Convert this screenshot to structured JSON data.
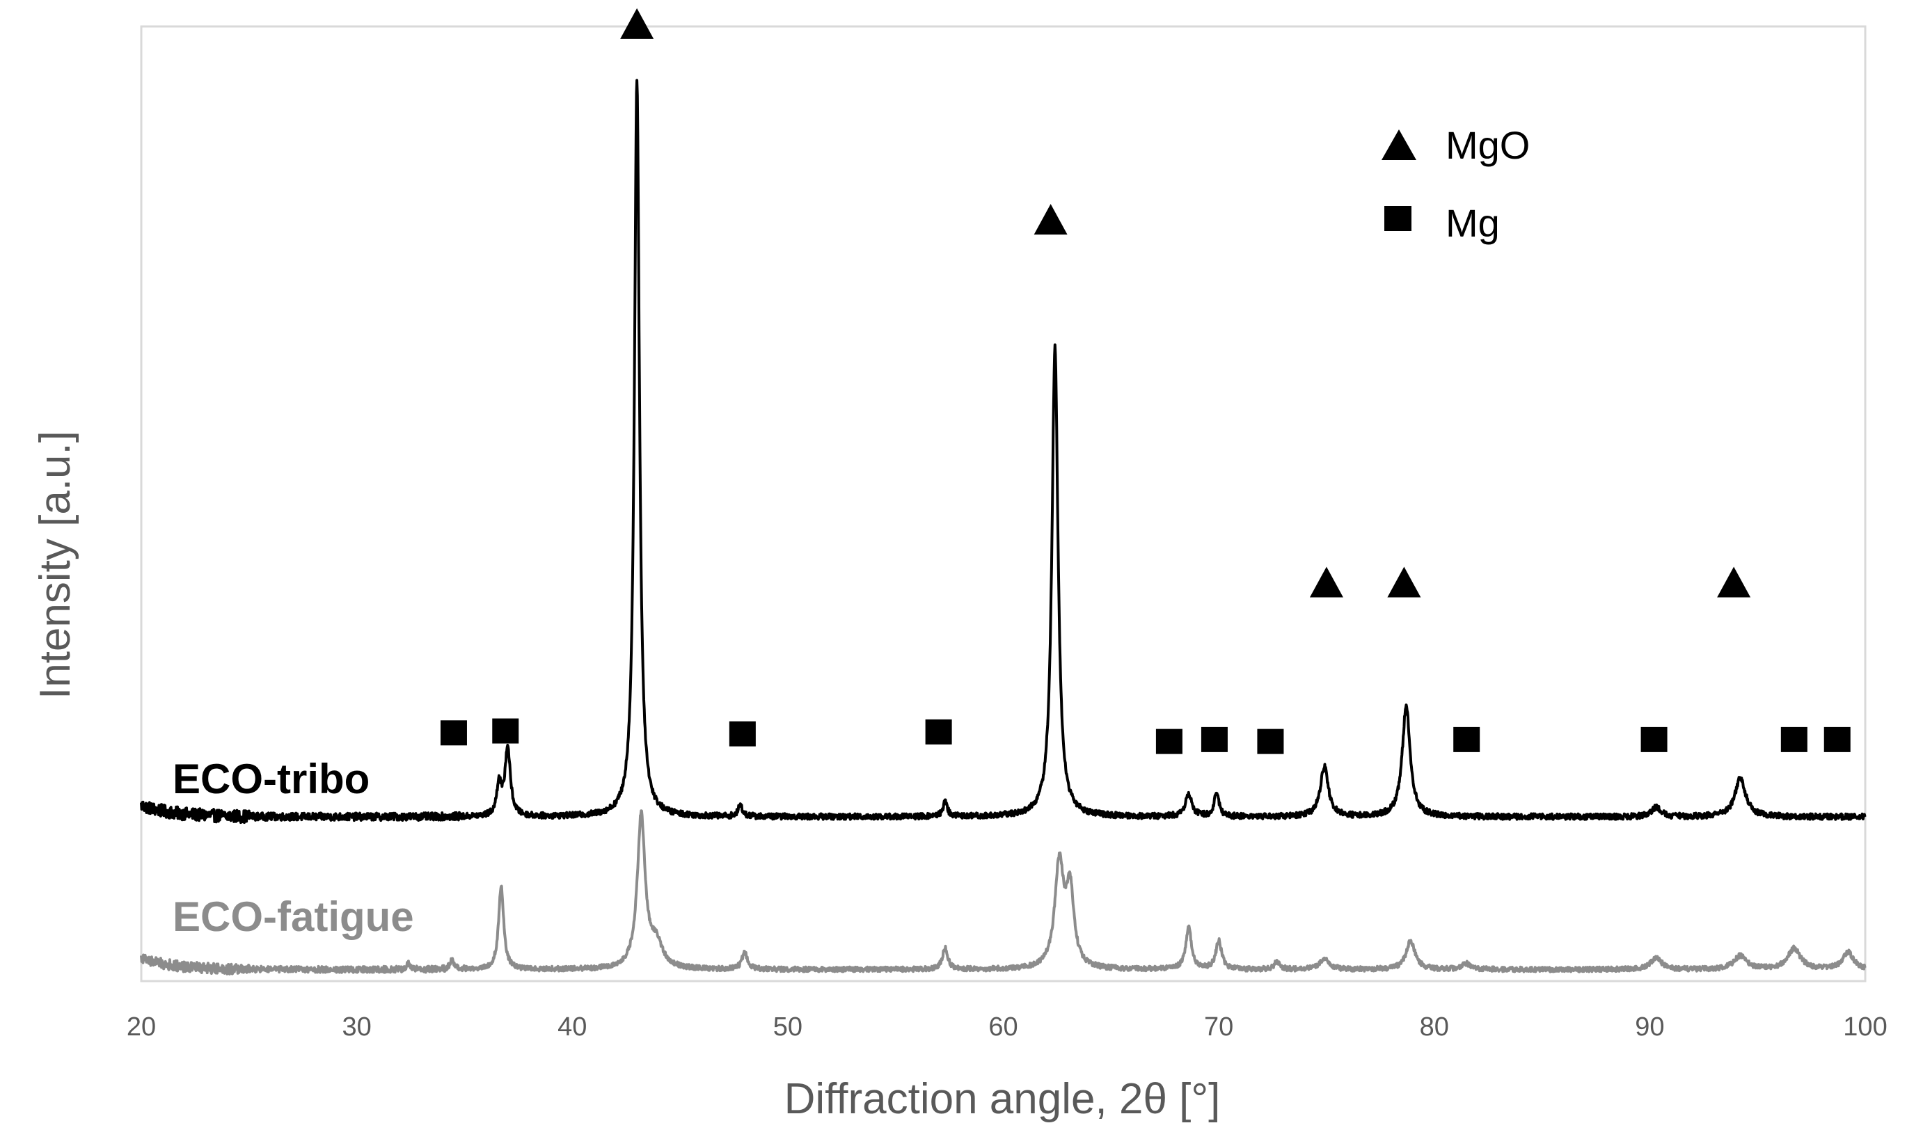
{
  "chart_data": {
    "type": "line",
    "title": "",
    "xlabel": "Diffraction angle, 2θ [°]",
    "ylabel": "Intensity [a.u.]",
    "xlim": [
      20,
      100
    ],
    "ylim": [
      0,
      1
    ],
    "xticks": [
      20,
      30,
      40,
      50,
      60,
      70,
      80,
      90,
      100
    ],
    "grid": false,
    "colors": {
      "tribo": "#000000",
      "fatigue": "#8c8c8c",
      "axis": "#d9d9d9",
      "text": "#595959"
    },
    "legend": {
      "placement": "top-right",
      "items": [
        {
          "label": "MgO",
          "marker": "triangle"
        },
        {
          "label": "Mg",
          "marker": "square"
        }
      ]
    },
    "series": [
      {
        "name": "ECO-tribo",
        "label": "ECO-tribo",
        "color": "#000000",
        "baseline": 0.172,
        "noise": 0.006,
        "peaks": [
          {
            "x": 36.6,
            "h": 0.034,
            "w": 0.12
          },
          {
            "x": 37.0,
            "h": 0.072,
            "w": 0.15
          },
          {
            "x": 43.0,
            "h": 0.772,
            "w": 0.14
          },
          {
            "x": 47.8,
            "h": 0.012,
            "w": 0.12
          },
          {
            "x": 57.3,
            "h": 0.016,
            "w": 0.12
          },
          {
            "x": 62.4,
            "h": 0.492,
            "w": 0.17
          },
          {
            "x": 68.6,
            "h": 0.024,
            "w": 0.18
          },
          {
            "x": 69.9,
            "h": 0.026,
            "w": 0.13
          },
          {
            "x": 74.9,
            "h": 0.052,
            "w": 0.22
          },
          {
            "x": 78.7,
            "h": 0.116,
            "w": 0.22
          },
          {
            "x": 90.3,
            "h": 0.01,
            "w": 0.25
          },
          {
            "x": 94.2,
            "h": 0.04,
            "w": 0.3
          }
        ],
        "markers": [
          {
            "x": 43.0,
            "y": 1.003,
            "phase": "MgO"
          },
          {
            "x": 62.2,
            "y": 0.798,
            "phase": "MgO"
          },
          {
            "x": 75.0,
            "y": 0.418,
            "phase": "MgO"
          },
          {
            "x": 78.6,
            "y": 0.418,
            "phase": "MgO"
          },
          {
            "x": 93.9,
            "y": 0.418,
            "phase": "MgO"
          },
          {
            "x": 34.5,
            "y": 0.26,
            "phase": "Mg"
          },
          {
            "x": 36.9,
            "y": 0.262,
            "phase": "Mg"
          },
          {
            "x": 47.9,
            "y": 0.259,
            "phase": "Mg"
          },
          {
            "x": 57.0,
            "y": 0.261,
            "phase": "Mg"
          },
          {
            "x": 67.7,
            "y": 0.251,
            "phase": "Mg"
          },
          {
            "x": 69.8,
            "y": 0.253,
            "phase": "Mg"
          },
          {
            "x": 72.4,
            "y": 0.251,
            "phase": "Mg"
          },
          {
            "x": 81.5,
            "y": 0.253,
            "phase": "Mg"
          },
          {
            "x": 90.2,
            "y": 0.253,
            "phase": "Mg"
          },
          {
            "x": 96.7,
            "y": 0.253,
            "phase": "Mg"
          },
          {
            "x": 98.7,
            "y": 0.253,
            "phase": "Mg"
          }
        ]
      },
      {
        "name": "ECO-fatigue",
        "label": "ECO-fatigue",
        "color": "#8c8c8c",
        "baseline": 0.012,
        "noise": 0.005,
        "peaks": [
          {
            "x": 32.4,
            "h": 0.006,
            "w": 0.1
          },
          {
            "x": 34.4,
            "h": 0.01,
            "w": 0.1
          },
          {
            "x": 36.7,
            "h": 0.088,
            "w": 0.14
          },
          {
            "x": 43.2,
            "h": 0.16,
            "w": 0.22
          },
          {
            "x": 43.9,
            "h": 0.025,
            "w": 0.35
          },
          {
            "x": 48.0,
            "h": 0.018,
            "w": 0.15
          },
          {
            "x": 57.3,
            "h": 0.022,
            "w": 0.15
          },
          {
            "x": 62.6,
            "h": 0.108,
            "w": 0.25
          },
          {
            "x": 63.1,
            "h": 0.078,
            "w": 0.22
          },
          {
            "x": 68.6,
            "h": 0.044,
            "w": 0.16
          },
          {
            "x": 70.0,
            "h": 0.03,
            "w": 0.16
          },
          {
            "x": 72.7,
            "h": 0.008,
            "w": 0.15
          },
          {
            "x": 74.9,
            "h": 0.012,
            "w": 0.25
          },
          {
            "x": 78.9,
            "h": 0.03,
            "w": 0.25
          },
          {
            "x": 81.5,
            "h": 0.006,
            "w": 0.25
          },
          {
            "x": 90.3,
            "h": 0.012,
            "w": 0.3
          },
          {
            "x": 94.2,
            "h": 0.014,
            "w": 0.35
          },
          {
            "x": 96.7,
            "h": 0.022,
            "w": 0.35
          },
          {
            "x": 99.2,
            "h": 0.018,
            "w": 0.3
          }
        ]
      }
    ]
  }
}
